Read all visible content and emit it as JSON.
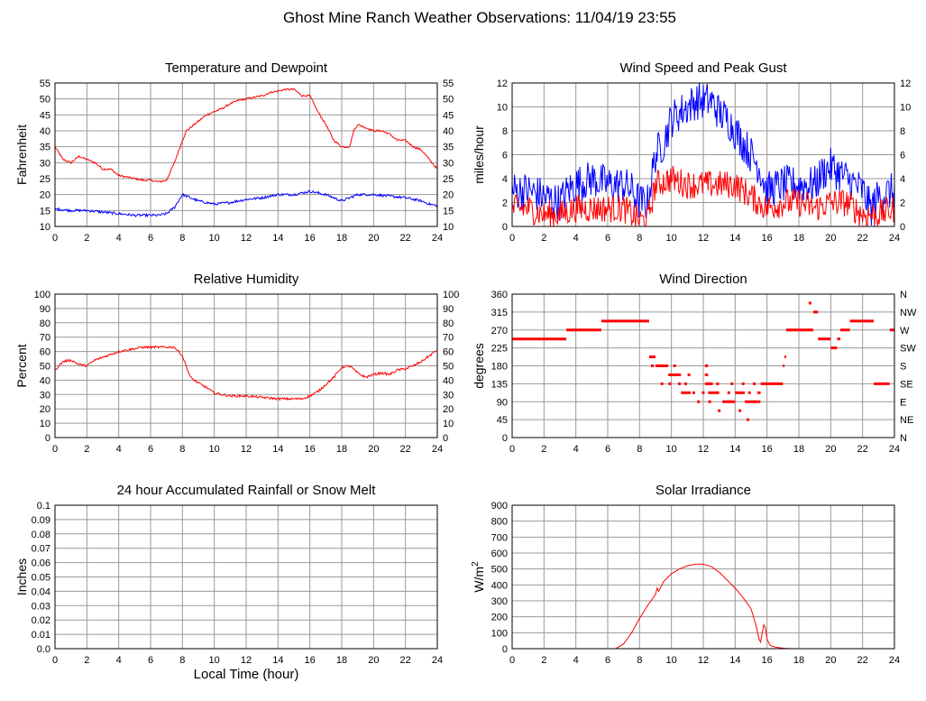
{
  "page": {
    "title": "Ghost Mine Ranch Weather Observations: 11/04/19 23:55",
    "x_axis_label": "Local Time (hour)"
  },
  "colors": {
    "red": "#ff0000",
    "blue": "#0000ff",
    "grid": "#999999"
  },
  "chart_data": [
    {
      "id": "temp",
      "type": "line",
      "title": "Temperature and Dewpoint",
      "ylabel": "Fahrenheit",
      "xlabel": "",
      "xlim": [
        0,
        24
      ],
      "xticks": [
        "0",
        "2",
        "4",
        "6",
        "8",
        "10",
        "12",
        "14",
        "16",
        "18",
        "20",
        "22",
        "24"
      ],
      "ylim": [
        10,
        55
      ],
      "yticks": [
        "10",
        "15",
        "20",
        "25",
        "30",
        "35",
        "40",
        "45",
        "50",
        "55"
      ],
      "right_yticks": [
        "10",
        "15",
        "20",
        "25",
        "30",
        "35",
        "40",
        "45",
        "50",
        "55"
      ],
      "grid": true,
      "series": [
        {
          "color": "red",
          "jitter": 0.3,
          "x": [
            0,
            0.5,
            1,
            1.5,
            2,
            2.5,
            3,
            3.5,
            4,
            4.5,
            5,
            5.5,
            6,
            6.5,
            7,
            7.5,
            8,
            8.25,
            8.5,
            9,
            9.5,
            10,
            10.5,
            11,
            11.5,
            12,
            12.5,
            13,
            13.5,
            14,
            14.5,
            15,
            15.5,
            16,
            16.5,
            17,
            17.5,
            18,
            18.5,
            18.75,
            19,
            19.5,
            20,
            20.5,
            21,
            21.5,
            22,
            22.5,
            23,
            23.5,
            24
          ],
          "values": [
            35,
            31,
            30,
            32,
            31,
            30,
            28,
            28,
            26,
            25.5,
            25,
            24.5,
            24.5,
            24,
            24.5,
            30,
            37,
            40,
            41,
            43,
            45,
            46,
            47,
            48.5,
            49.5,
            50,
            50.5,
            51,
            52,
            52.5,
            53,
            53,
            51,
            51,
            46,
            42,
            37,
            35,
            35,
            40,
            42,
            41,
            40,
            40,
            39,
            37,
            37,
            35,
            34,
            31,
            28
          ]
        },
        {
          "color": "blue",
          "jitter": 0.4,
          "x": [
            0,
            1,
            2,
            3,
            4,
            5,
            6,
            6.5,
            7,
            7.5,
            8,
            8.5,
            9,
            10,
            11,
            12,
            13,
            14,
            15,
            16,
            17,
            18,
            19,
            20,
            21,
            22,
            23,
            23.5,
            24
          ],
          "values": [
            15.5,
            15,
            15,
            14.5,
            14,
            13.5,
            13.5,
            13.5,
            14,
            16,
            20,
            19,
            18,
            17,
            17.5,
            18.5,
            19,
            20,
            20,
            21,
            20,
            18,
            20,
            20,
            19.5,
            19,
            18,
            17,
            16.5
          ]
        }
      ]
    },
    {
      "id": "wind",
      "type": "line",
      "title": "Wind Speed and Peak Gust",
      "ylabel": "miles/hour",
      "xlabel": "",
      "xlim": [
        0,
        24
      ],
      "xticks": [
        "0",
        "2",
        "4",
        "6",
        "8",
        "10",
        "12",
        "14",
        "16",
        "18",
        "20",
        "22",
        "24"
      ],
      "ylim": [
        0,
        12
      ],
      "yticks": [
        "0",
        "2",
        "4",
        "6",
        "8",
        "10",
        "12"
      ],
      "right_yticks": [
        "0",
        "2",
        "4",
        "6",
        "8",
        "10",
        "12"
      ],
      "grid": true,
      "series": [
        {
          "color": "blue",
          "jitter": 1.6,
          "x": [
            0,
            1,
            2,
            3,
            3.5,
            4,
            5,
            6,
            7,
            7.5,
            8,
            8.5,
            9,
            9.5,
            10,
            10.5,
            11,
            11.5,
            12,
            12.5,
            13,
            13.5,
            14,
            15,
            15.5,
            16,
            17,
            18,
            19,
            19.5,
            20,
            21,
            22,
            22.5,
            23,
            24
          ],
          "values": [
            3,
            3,
            2.5,
            2,
            3,
            3.5,
            4,
            3.5,
            3.5,
            3,
            2,
            2,
            6,
            7,
            9,
            9.5,
            10,
            10.5,
            10.5,
            10.5,
            9.5,
            9,
            8,
            6,
            5,
            3,
            3.5,
            3.5,
            3.5,
            4.5,
            5,
            4,
            3,
            1.5,
            2.5,
            3
          ]
        },
        {
          "color": "red",
          "jitter": 1.2,
          "x": [
            0,
            1,
            2,
            3,
            4,
            5,
            6,
            7,
            7.5,
            8,
            8.5,
            9,
            10,
            11,
            12,
            13,
            14,
            15,
            15.5,
            16,
            17,
            18,
            19,
            20,
            21,
            22,
            23,
            24
          ],
          "values": [
            1.5,
            1.5,
            1,
            1,
            1.5,
            1.5,
            1.5,
            1.5,
            1,
            0.5,
            0.5,
            3.5,
            4,
            3.5,
            3.5,
            3.5,
            3.5,
            2.5,
            2,
            1.5,
            2,
            2,
            1.5,
            2,
            2,
            1,
            1,
            1.5
          ]
        }
      ]
    },
    {
      "id": "rh",
      "type": "line",
      "title": "Relative Humidity",
      "ylabel": "Percent",
      "xlabel": "",
      "xlim": [
        0,
        24
      ],
      "xticks": [
        "0",
        "2",
        "4",
        "6",
        "8",
        "10",
        "12",
        "14",
        "16",
        "18",
        "20",
        "22",
        "24"
      ],
      "ylim": [
        0,
        100
      ],
      "yticks": [
        "0",
        "10",
        "20",
        "30",
        "40",
        "50",
        "60",
        "70",
        "80",
        "90",
        "100"
      ],
      "right_yticks": [
        "0",
        "10",
        "20",
        "30",
        "40",
        "50",
        "60",
        "70",
        "80",
        "90",
        "100"
      ],
      "grid": true,
      "series": [
        {
          "color": "red",
          "jitter": 0.8,
          "x": [
            0,
            0.5,
            1,
            1.5,
            2,
            2.5,
            3,
            3.5,
            4,
            4.5,
            5,
            5.5,
            6,
            6.5,
            7,
            7.5,
            8,
            8.5,
            9,
            9.5,
            10,
            10.5,
            11,
            12,
            13,
            14,
            15,
            15.5,
            16,
            16.5,
            17,
            17.5,
            18,
            18.5,
            19,
            19.5,
            20,
            20.5,
            21,
            21.5,
            22,
            22.5,
            23,
            23.5,
            24
          ],
          "values": [
            47,
            53,
            54,
            51,
            50,
            54,
            56,
            58,
            60,
            61,
            62,
            63,
            63,
            63,
            63,
            63,
            57,
            42,
            38,
            35,
            31,
            30,
            29,
            29,
            28,
            27,
            27,
            27,
            29,
            32,
            37,
            42,
            49,
            50,
            45,
            42,
            44,
            45,
            44,
            47,
            48,
            50,
            53,
            57,
            61
          ]
        }
      ]
    },
    {
      "id": "dir",
      "type": "scatter",
      "title": "Wind Direction",
      "ylabel": "degrees",
      "xlabel": "",
      "xlim": [
        0,
        24
      ],
      "xticks": [
        "0",
        "2",
        "4",
        "6",
        "8",
        "10",
        "12",
        "14",
        "16",
        "18",
        "20",
        "22",
        "24"
      ],
      "ylim": [
        0,
        360
      ],
      "yticks": [
        "0",
        "45",
        "90",
        "135",
        "180",
        "225",
        "270",
        "315",
        "360"
      ],
      "right_yticks": [
        "N",
        "NE",
        "E",
        "SE",
        "S",
        "SW",
        "W",
        "NW",
        "N"
      ],
      "grid": true,
      "segments": [
        [
          0,
          3.4,
          247.5
        ],
        [
          3.4,
          5.6,
          270
        ],
        [
          5.6,
          8.6,
          292.5
        ],
        [
          8.6,
          9.0,
          202.5
        ],
        [
          9.0,
          9.8,
          180
        ],
        [
          9.8,
          10.6,
          157.5
        ],
        [
          10.6,
          11.2,
          112.5
        ],
        [
          12.1,
          12.3,
          180
        ],
        [
          12.1,
          12.3,
          157.5
        ],
        [
          12.1,
          12.6,
          135
        ],
        [
          12.3,
          13.0,
          112.5
        ],
        [
          13.2,
          14.0,
          90
        ],
        [
          14.0,
          14.6,
          112.5
        ],
        [
          14.6,
          15.4,
          90
        ],
        [
          15.4,
          15.6,
          112.5
        ],
        [
          15.6,
          17.0,
          135
        ],
        [
          17.0,
          17.1,
          180
        ],
        [
          17.1,
          17.2,
          202.5
        ],
        [
          17.2,
          18.9,
          270
        ],
        [
          18.9,
          19.2,
          315
        ],
        [
          19.2,
          20.0,
          247.5
        ],
        [
          20.0,
          20.4,
          225
        ],
        [
          20.4,
          20.6,
          247.5
        ],
        [
          20.6,
          21.2,
          270
        ],
        [
          21.2,
          22.7,
          292.5
        ],
        [
          22.7,
          23.7,
          135
        ],
        [
          23.7,
          24,
          270
        ]
      ],
      "points": [
        [
          18.7,
          337.5
        ],
        [
          8.8,
          180
        ],
        [
          9.4,
          135
        ],
        [
          9.9,
          135
        ],
        [
          10.2,
          180
        ],
        [
          10.5,
          135
        ],
        [
          10.9,
          135
        ],
        [
          11.1,
          157.5
        ],
        [
          11.4,
          112.5
        ],
        [
          11.7,
          90
        ],
        [
          12.0,
          112.5
        ],
        [
          12.4,
          90
        ],
        [
          12.9,
          135
        ],
        [
          13.0,
          67.5
        ],
        [
          13.6,
          112.5
        ],
        [
          13.8,
          135
        ],
        [
          14.3,
          67.5
        ],
        [
          14.5,
          135
        ],
        [
          14.8,
          45
        ],
        [
          14.9,
          112.5
        ],
        [
          15.2,
          135
        ],
        [
          15.5,
          90
        ]
      ]
    },
    {
      "id": "rain",
      "type": "line",
      "title": "24 hour Accumulated Rainfall or Snow Melt",
      "ylabel": "Inches",
      "xlabel": "Local Time (hour)",
      "xlim": [
        0,
        24
      ],
      "xticks": [
        "0",
        "2",
        "4",
        "6",
        "8",
        "10",
        "12",
        "14",
        "16",
        "18",
        "20",
        "22",
        "24"
      ],
      "ylim": [
        0,
        0.1
      ],
      "yticks": [
        "0.0",
        "0.01",
        "0.02",
        "0.03",
        "0.04",
        "0.05",
        "0.06",
        "0.07",
        "0.08",
        "0.09",
        "0.1"
      ],
      "right_yticks": [],
      "grid": true,
      "series": [
        {
          "color": "red",
          "jitter": 0,
          "x": [
            0,
            24
          ],
          "values": [
            0,
            0
          ]
        }
      ]
    },
    {
      "id": "solar",
      "type": "line",
      "title": "Solar Irradiance",
      "ylabel": "W/m",
      "ylabel_sup": "2",
      "xlabel": "",
      "xlim": [
        0,
        24
      ],
      "xticks": [
        "0",
        "2",
        "4",
        "6",
        "8",
        "10",
        "12",
        "14",
        "16",
        "18",
        "20",
        "22",
        "24"
      ],
      "ylim": [
        0,
        900
      ],
      "yticks": [
        "0",
        "100",
        "200",
        "300",
        "400",
        "500",
        "600",
        "700",
        "800",
        "900"
      ],
      "right_yticks": [],
      "grid": true,
      "series": [
        {
          "color": "red",
          "jitter": 0,
          "x": [
            0,
            6.5,
            7,
            7.5,
            8,
            8.5,
            9,
            9.1,
            9.2,
            9.5,
            10,
            10.5,
            11,
            11.5,
            12,
            12.5,
            13,
            13.5,
            14,
            14.5,
            15,
            15.3,
            15.5,
            15.6,
            15.7,
            15.8,
            15.9,
            16.0,
            16.2,
            16.5,
            17,
            17.5,
            24
          ],
          "values": [
            0,
            0,
            30,
            100,
            190,
            270,
            340,
            380,
            360,
            420,
            470,
            500,
            520,
            530,
            530,
            515,
            480,
            430,
            380,
            320,
            250,
            150,
            60,
            40,
            100,
            150,
            130,
            60,
            20,
            10,
            3,
            0,
            0
          ]
        }
      ]
    }
  ]
}
